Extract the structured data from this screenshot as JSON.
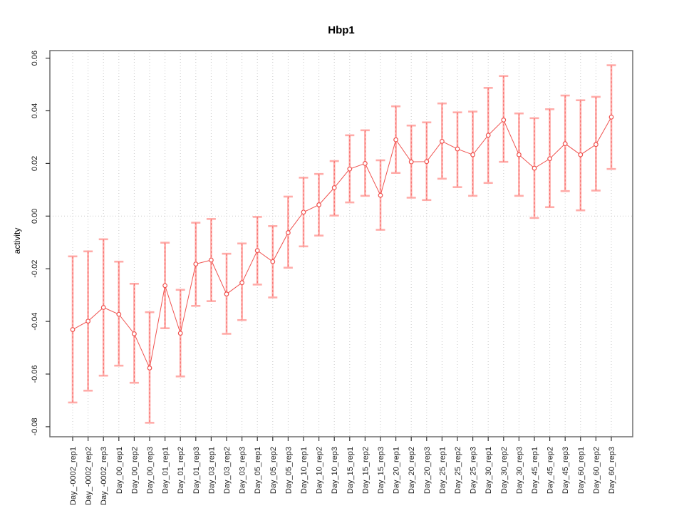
{
  "chart_data": {
    "type": "line",
    "title": "Hbp1",
    "xlabel": "",
    "ylabel": "activity",
    "ylim": [
      -0.08,
      0.06
    ],
    "ytick_values": [
      0.06,
      0.04,
      0.02,
      0.0,
      -0.02,
      -0.04,
      -0.06,
      -0.08
    ],
    "ytick_labels": [
      "0.06",
      "0.04",
      "0.02",
      "0.00",
      "-0.02",
      "-0.04",
      "-0.06",
      "-0.08"
    ],
    "grid": "vertical dotted line at every category; horizontal dotted line at y=0 only",
    "legend_position": "none",
    "categories": [
      "Day_-0002_rep1",
      "Day_-0002_rep2",
      "Day_-0002_rep3",
      "Day_00_rep1",
      "Day_00_rep2",
      "Day_00_rep3",
      "Day_01_rep1",
      "Day_01_rep2",
      "Day_01_rep3",
      "Day_03_rep1",
      "Day_03_rep2",
      "Day_03_rep3",
      "Day_05_rep1",
      "Day_05_rep2",
      "Day_05_rep3",
      "Day_10_rep1",
      "Day_10_rep2",
      "Day_10_rep3",
      "Day_15_rep1",
      "Day_15_rep2",
      "Day_15_rep3",
      "Day_20_rep1",
      "Day_20_rep2",
      "Day_20_rep3",
      "Day_25_rep1",
      "Day_25_rep2",
      "Day_25_rep3",
      "Day_30_rep1",
      "Day_30_rep2",
      "Day_30_rep3",
      "Day_45_rep1",
      "Day_45_rep2",
      "Day_45_rep3",
      "Day_60_rep1",
      "Day_60_rep2",
      "Day_60_rep3"
    ],
    "series": [
      {
        "name": "activity",
        "values": [
          -0.0431,
          -0.0399,
          -0.0347,
          -0.0373,
          -0.0447,
          -0.0577,
          -0.0264,
          -0.0445,
          -0.0182,
          -0.0167,
          -0.0296,
          -0.0253,
          -0.0131,
          -0.0173,
          -0.0063,
          0.0015,
          0.0043,
          0.0108,
          0.0179,
          0.02,
          0.0079,
          0.029,
          0.0206,
          0.0207,
          0.0284,
          0.0255,
          0.0233,
          0.0307,
          0.0365,
          0.0233,
          0.0182,
          0.0218,
          0.0275,
          0.0233,
          0.0272,
          0.0376
        ],
        "lower": [
          -0.0708,
          -0.0663,
          -0.0606,
          -0.0568,
          -0.0633,
          -0.0785,
          -0.0426,
          -0.0609,
          -0.0341,
          -0.0323,
          -0.0447,
          -0.0395,
          -0.026,
          -0.0309,
          -0.0196,
          -0.0115,
          -0.0074,
          0.0002,
          0.0052,
          0.0077,
          -0.0052,
          0.0164,
          0.007,
          0.0061,
          0.0142,
          0.011,
          0.0077,
          0.0126,
          0.0206,
          0.0077,
          -0.0007,
          0.0034,
          0.0095,
          0.0022,
          0.0097,
          0.0179
        ],
        "upper": [
          -0.0153,
          -0.0134,
          -0.0088,
          -0.0173,
          -0.0257,
          -0.0365,
          -0.0101,
          -0.028,
          -0.0025,
          -0.0011,
          -0.0143,
          -0.0104,
          -0.0003,
          -0.0038,
          0.0074,
          0.0146,
          0.016,
          0.0209,
          0.0307,
          0.0326,
          0.0212,
          0.0417,
          0.0344,
          0.0356,
          0.0428,
          0.0394,
          0.0397,
          0.0487,
          0.0532,
          0.039,
          0.0372,
          0.0406,
          0.0458,
          0.044,
          0.0453,
          0.0573
        ]
      }
    ],
    "colors": {
      "point": "#f0524f",
      "line": "#f0524f",
      "error_bar": "#ffaca9",
      "grid": "#c9c9c9",
      "zero_line": "#c9c9c9",
      "box": "#6e6e6e",
      "tick": "#333333",
      "text": "#000000"
    }
  }
}
